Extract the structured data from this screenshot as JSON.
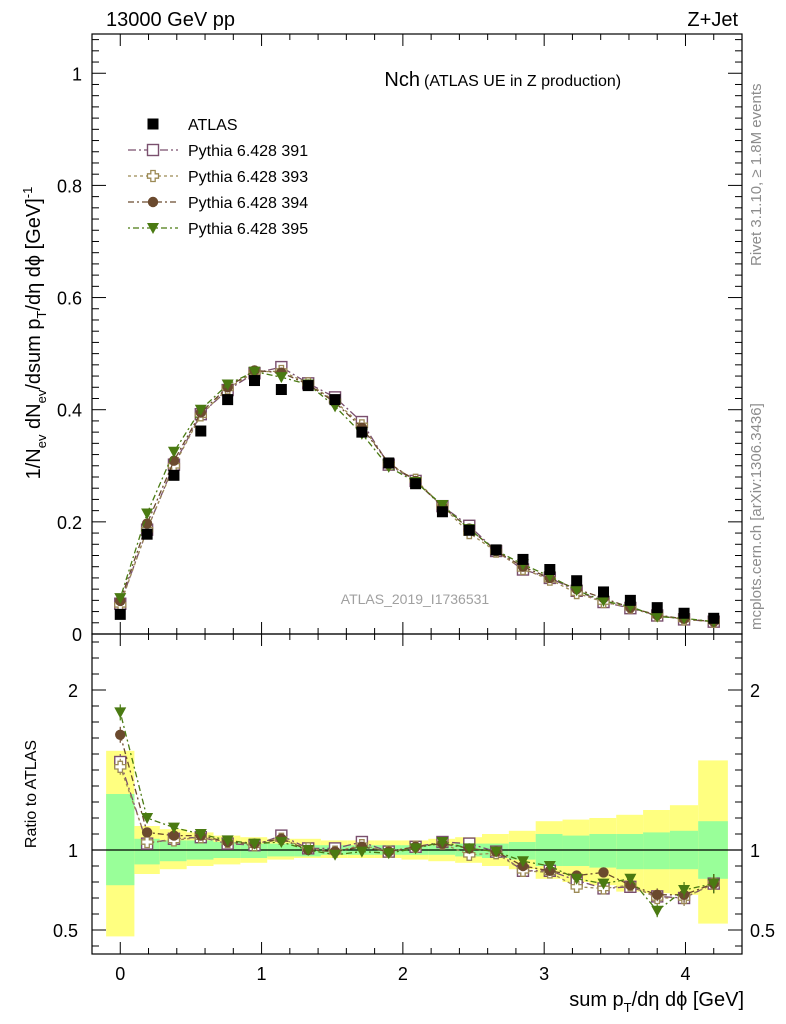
{
  "header": {
    "left": "13000 GeV pp",
    "right": "Z+Jet"
  },
  "title": {
    "main": "Nch",
    "sub": "(ATLAS UE in Z production)"
  },
  "side_text": {
    "rivet": "Rivet 3.1.10, ≥ 1.8M events",
    "mcplots": "mcplots.cern.ch [arXiv:1306.3436]"
  },
  "analysis_label": "ATLAS_2019_I1736531",
  "axes": {
    "top_ylabel": "1/N_ev dN_ev/dsum p_T/dη dφ [GeV]^-1",
    "bottom_ylabel": "Ratio to ATLAS",
    "xlabel": "sum p_T/dη dφ [GeV]"
  },
  "chart_data": [
    {
      "type": "scatter",
      "panel": "main",
      "xlim": [
        -0.2,
        4.4
      ],
      "ylim": [
        0,
        1.07
      ],
      "x_ticks": [
        "0",
        "1",
        "2",
        "3",
        "4"
      ],
      "y_ticks": [
        "0",
        "0.2",
        "0.4",
        "0.6",
        "0.8",
        "1"
      ],
      "x": [
        0.0,
        0.19,
        0.38,
        0.57,
        0.76,
        0.95,
        1.14,
        1.33,
        1.52,
        1.71,
        1.9,
        2.09,
        2.28,
        2.47,
        2.66,
        2.85,
        3.04,
        3.23,
        3.42,
        3.61,
        3.8,
        3.99,
        4.2
      ],
      "series": [
        {
          "name": "ATLAS",
          "color": "#000000",
          "marker": "square-filled",
          "values": [
            0.035,
            0.178,
            0.283,
            0.362,
            0.418,
            0.452,
            0.436,
            0.443,
            0.418,
            0.36,
            0.305,
            0.268,
            0.218,
            0.185,
            0.15,
            0.133,
            0.115,
            0.095,
            0.075,
            0.06,
            0.047,
            0.037,
            0.028
          ]
        },
        {
          "name": "Pythia 6.428 391",
          "color": "#7a4f6e",
          "marker": "square-open",
          "values": [
            0.054,
            0.186,
            0.302,
            0.392,
            0.435,
            0.465,
            0.476,
            0.447,
            0.422,
            0.378,
            0.302,
            0.273,
            0.228,
            0.193,
            0.148,
            0.115,
            0.1,
            0.077,
            0.057,
            0.046,
            0.033,
            0.026,
            0.022
          ]
        },
        {
          "name": "Pythia 6.428 393",
          "color": "#9c8a55",
          "marker": "cross-open",
          "values": [
            0.052,
            0.186,
            0.3,
            0.39,
            0.438,
            0.467,
            0.469,
            0.447,
            0.415,
            0.372,
            0.303,
            0.275,
            0.228,
            0.18,
            0.147,
            0.116,
            0.097,
            0.073,
            0.057,
            0.047,
            0.033,
            0.026,
            0.022
          ]
        },
        {
          "name": "Pythia 6.428 394",
          "color": "#6b4a2e",
          "marker": "circle-filled",
          "values": [
            0.059,
            0.197,
            0.309,
            0.395,
            0.44,
            0.47,
            0.466,
            0.445,
            0.413,
            0.368,
            0.305,
            0.273,
            0.227,
            0.188,
            0.148,
            0.12,
            0.1,
            0.08,
            0.064,
            0.047,
            0.034,
            0.027,
            0.022
          ]
        },
        {
          "name": "Pythia 6.428 395",
          "color": "#4a7a12",
          "marker": "triangle-down-filled",
          "values": [
            0.064,
            0.215,
            0.325,
            0.4,
            0.445,
            0.468,
            0.458,
            0.445,
            0.406,
            0.357,
            0.298,
            0.271,
            0.23,
            0.187,
            0.149,
            0.124,
            0.103,
            0.078,
            0.059,
            0.049,
            0.031,
            0.028,
            0.022
          ]
        }
      ]
    },
    {
      "type": "scatter",
      "panel": "ratio",
      "ylim": [
        0.35,
        2.35
      ],
      "y_ticks": [
        "0.5",
        "1",
        "2"
      ],
      "reference_line": 1,
      "bands": {
        "edges": [
          -0.1,
          0.1,
          0.28,
          0.47,
          0.66,
          0.85,
          1.04,
          1.23,
          1.42,
          1.61,
          1.8,
          1.99,
          2.18,
          2.37,
          2.56,
          2.75,
          2.94,
          3.13,
          3.32,
          3.51,
          3.7,
          3.89,
          4.09,
          4.3
        ],
        "inner": {
          "color": "#99ff99",
          "low": [
            0.78,
            0.91,
            0.93,
            0.94,
            0.95,
            0.95,
            0.96,
            0.96,
            0.97,
            0.97,
            0.97,
            0.97,
            0.97,
            0.96,
            0.95,
            0.94,
            0.9,
            0.9,
            0.89,
            0.88,
            0.88,
            0.88,
            0.82
          ],
          "high": [
            1.35,
            1.07,
            1.06,
            1.06,
            1.05,
            1.04,
            1.04,
            1.03,
            1.03,
            1.03,
            1.03,
            1.03,
            1.03,
            1.04,
            1.04,
            1.05,
            1.1,
            1.09,
            1.1,
            1.1,
            1.11,
            1.12,
            1.18
          ]
        },
        "outer": {
          "color": "#ffff80",
          "low": [
            0.46,
            0.85,
            0.88,
            0.9,
            0.91,
            0.92,
            0.94,
            0.95,
            0.95,
            0.95,
            0.95,
            0.94,
            0.93,
            0.92,
            0.9,
            0.88,
            0.82,
            0.8,
            0.78,
            0.74,
            0.73,
            0.72,
            0.54
          ]
        },
        "outer_high": [
          1.62,
          1.15,
          1.13,
          1.11,
          1.09,
          1.08,
          1.07,
          1.07,
          1.06,
          1.06,
          1.06,
          1.06,
          1.07,
          1.08,
          1.1,
          1.12,
          1.18,
          1.19,
          1.2,
          1.22,
          1.25,
          1.28,
          1.56
        ]
      },
      "series": [
        {
          "name": "Pythia 6.428 391",
          "values": [
            1.55,
            1.04,
            1.07,
            1.08,
            1.04,
            1.03,
            1.09,
            1.01,
            1.01,
            1.05,
            0.99,
            1.02,
            1.05,
            1.04,
            0.99,
            0.87,
            0.87,
            0.81,
            0.76,
            0.77,
            0.71,
            0.7,
            0.79
          ],
          "err": [
            0.05,
            0.02,
            0.015,
            0.01,
            0.01,
            0.01,
            0.01,
            0.01,
            0.01,
            0.01,
            0.01,
            0.01,
            0.01,
            0.01,
            0.015,
            0.02,
            0.02,
            0.02,
            0.03,
            0.03,
            0.04,
            0.05,
            0.06
          ]
        },
        {
          "name": "Pythia 6.428 393",
          "values": [
            1.52,
            1.05,
            1.06,
            1.08,
            1.05,
            1.03,
            1.07,
            1.01,
            0.99,
            1.03,
            0.99,
            1.02,
            1.04,
            0.97,
            0.98,
            0.87,
            0.86,
            0.77,
            0.76,
            0.78,
            0.7,
            0.7,
            0.79
          ],
          "err": [
            0.05,
            0.02,
            0.015,
            0.01,
            0.01,
            0.01,
            0.01,
            0.01,
            0.01,
            0.01,
            0.01,
            0.01,
            0.01,
            0.01,
            0.015,
            0.02,
            0.02,
            0.02,
            0.03,
            0.03,
            0.04,
            0.05,
            0.06
          ]
        },
        {
          "name": "Pythia 6.428 394",
          "values": [
            1.72,
            1.11,
            1.09,
            1.09,
            1.05,
            1.04,
            1.07,
            1.0,
            0.99,
            1.02,
            0.99,
            1.02,
            1.04,
            1.01,
            0.99,
            0.9,
            0.87,
            0.84,
            0.86,
            0.78,
            0.72,
            0.72,
            0.79
          ],
          "err": [
            0.05,
            0.02,
            0.015,
            0.01,
            0.01,
            0.01,
            0.01,
            0.01,
            0.01,
            0.01,
            0.01,
            0.01,
            0.01,
            0.01,
            0.015,
            0.02,
            0.02,
            0.02,
            0.03,
            0.03,
            0.04,
            0.05,
            0.06
          ]
        },
        {
          "name": "Pythia 6.428 395",
          "values": [
            1.86,
            1.2,
            1.14,
            1.1,
            1.06,
            1.04,
            1.05,
            1.0,
            0.97,
            0.99,
            0.98,
            1.01,
            1.05,
            1.01,
            0.99,
            0.93,
            0.9,
            0.82,
            0.79,
            0.82,
            0.62,
            0.75,
            0.79
          ],
          "err": [
            0.05,
            0.02,
            0.015,
            0.01,
            0.01,
            0.01,
            0.01,
            0.01,
            0.01,
            0.01,
            0.01,
            0.01,
            0.01,
            0.01,
            0.015,
            0.02,
            0.02,
            0.02,
            0.03,
            0.03,
            0.04,
            0.05,
            0.06
          ]
        }
      ]
    }
  ]
}
